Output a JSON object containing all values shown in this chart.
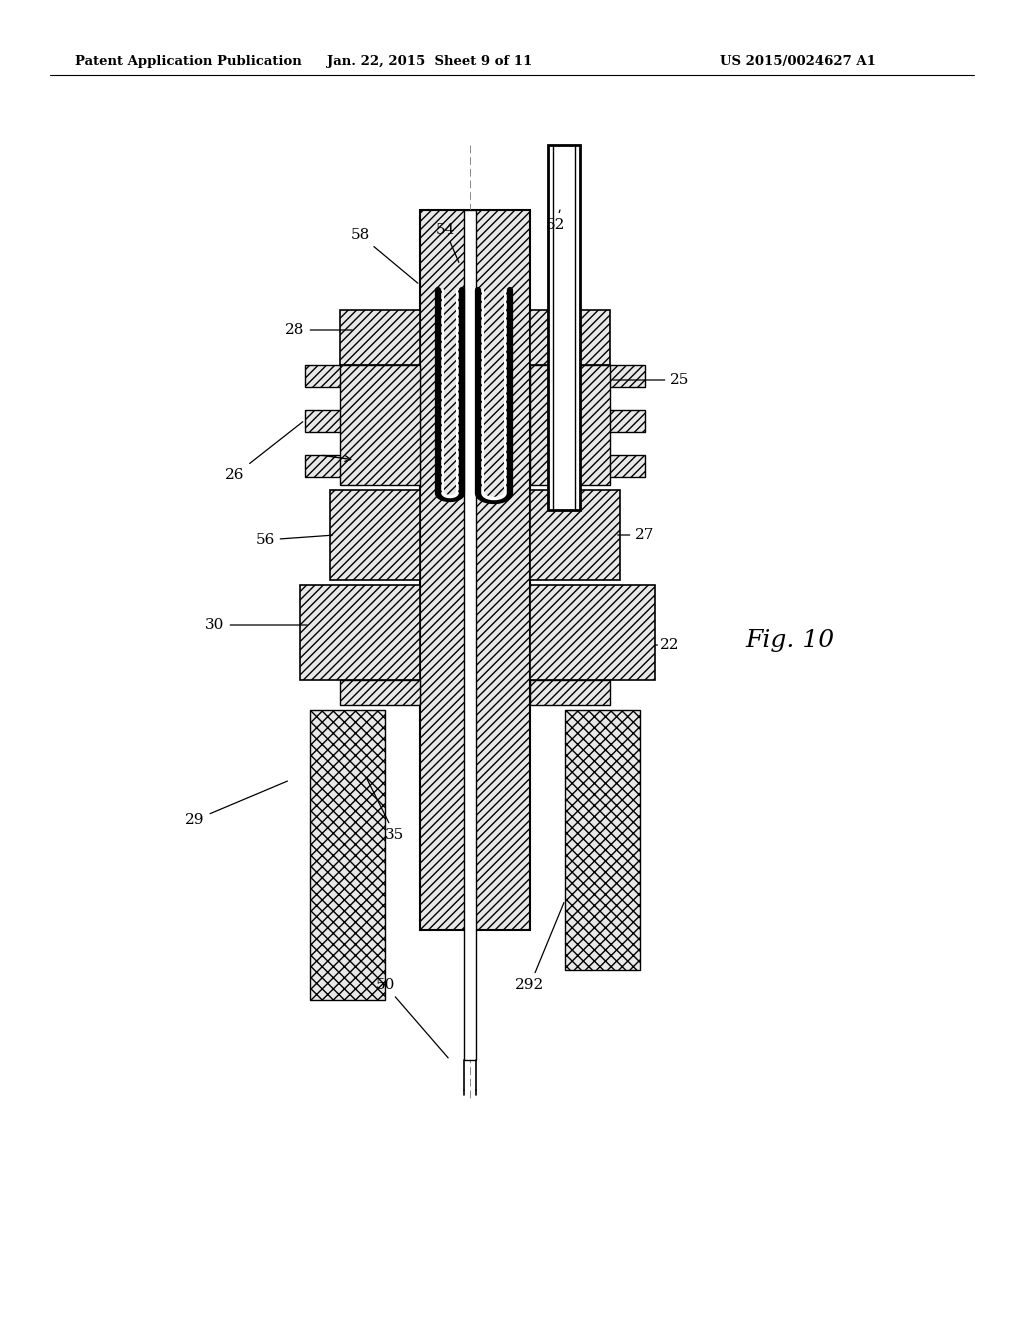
{
  "bg_color": "#ffffff",
  "title_left": "Patent Application Publication",
  "title_center": "Jan. 22, 2015  Sheet 9 of 11",
  "title_right": "US 2015/0024627 A1",
  "fig_label": "Fig. 10",
  "hatch_color": "#444444",
  "hatch_pattern": "////",
  "line_color": "#000000"
}
